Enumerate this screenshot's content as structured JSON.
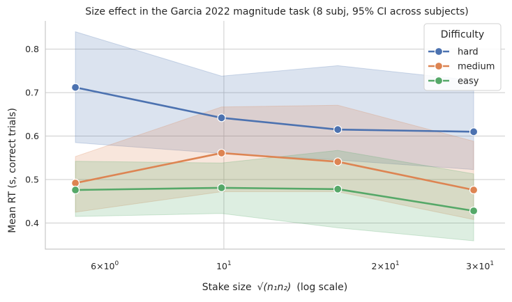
{
  "chart_data": {
    "type": "line",
    "title": "Size effect in the Garcia 2022 magnitude task (8 subj, 95% CI across subjects)",
    "xlabel": "Stake size",
    "xlabel_math": "√(n₁n₂)",
    "xlabel_suffix": "(log scale)",
    "ylabel": "Mean RT (s, correct trials)",
    "xscale": "log",
    "xlim": [
      4.65,
      33.4
    ],
    "ylim": [
      0.34,
      0.865
    ],
    "x_ticks": [
      {
        "value": 6,
        "base": "6×10",
        "exp": "0"
      },
      {
        "value": 10,
        "base": "10",
        "exp": "1"
      },
      {
        "value": 20,
        "base": "2×10",
        "exp": "1"
      },
      {
        "value": 30,
        "base": "3×10",
        "exp": "1"
      }
    ],
    "y_ticks": [
      0.4,
      0.5,
      0.6,
      0.7,
      0.8
    ],
    "y_tick_labels": [
      "0.4",
      "0.5",
      "0.6",
      "0.7",
      "0.8"
    ],
    "grid": true,
    "x_grid_ticks": [
      10
    ],
    "x": [
      5.29,
      9.9,
      16.3,
      29.2
    ],
    "legend": {
      "title": "Difficulty",
      "placement": "top-right"
    },
    "series": [
      {
        "name": "hard",
        "color": "#4c72b0",
        "values": [
          0.712,
          0.642,
          0.615,
          0.61
        ],
        "ci_low": [
          0.585,
          0.56,
          0.545,
          0.523
        ],
        "ci_high": [
          0.84,
          0.738,
          0.762,
          0.728
        ]
      },
      {
        "name": "medium",
        "color": "#dd8452",
        "values": [
          0.492,
          0.561,
          0.541,
          0.476
        ],
        "ci_low": [
          0.425,
          0.472,
          0.472,
          0.408
        ],
        "ci_high": [
          0.553,
          0.667,
          0.671,
          0.588
        ]
      },
      {
        "name": "easy",
        "color": "#55a868",
        "values": [
          0.476,
          0.481,
          0.478,
          0.428
        ],
        "ci_low": [
          0.415,
          0.422,
          0.389,
          0.359
        ],
        "ci_high": [
          0.542,
          0.538,
          0.567,
          0.513
        ]
      }
    ]
  }
}
